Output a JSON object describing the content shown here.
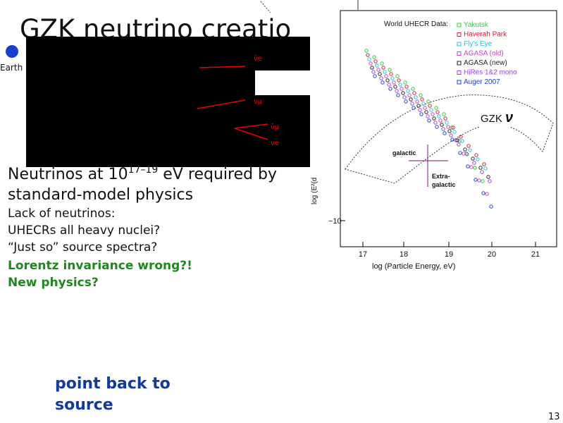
{
  "slide": {
    "title": "GZK neutrino creatio",
    "earth_label": "Earth",
    "neutrino_labels": [
      "ν̄e",
      "νμ",
      "ν̄μ",
      "νe"
    ],
    "main_point": [
      "Neutrinos at 10",
      "17–19",
      " eV required by",
      "standard-model physics"
    ],
    "sub_points": [
      "Lack of neutrinos:",
      "UHECRs all heavy nuclei?",
      "“Just so” source spectra?"
    ],
    "highlight_points": [
      "Lorentz invariance wrong?!",
      "New physics?"
    ],
    "callout": [
      "point back to",
      "source"
    ],
    "page_number": "13"
  },
  "figure": {
    "legend_title": "World UHECR Data:",
    "legend": [
      "Yakutsk",
      "Haverah Park",
      "Fly's Eye",
      "AGASA (old)",
      "AGASA (new)",
      "HiRes 1&2 mono",
      "Auger 2007"
    ],
    "x_axis_label": "log (Particle Energy, eV)",
    "x_ticks": [
      "17",
      "18",
      "19",
      "20",
      "21"
    ],
    "y_axis_label": "log (E²(d",
    "y_tick": "−10",
    "gzk_label": "GZK",
    "nu_symbol": "ν",
    "galactic_label": "galactic",
    "extragalactic_label": [
      "Extra-",
      "galactic"
    ]
  }
}
